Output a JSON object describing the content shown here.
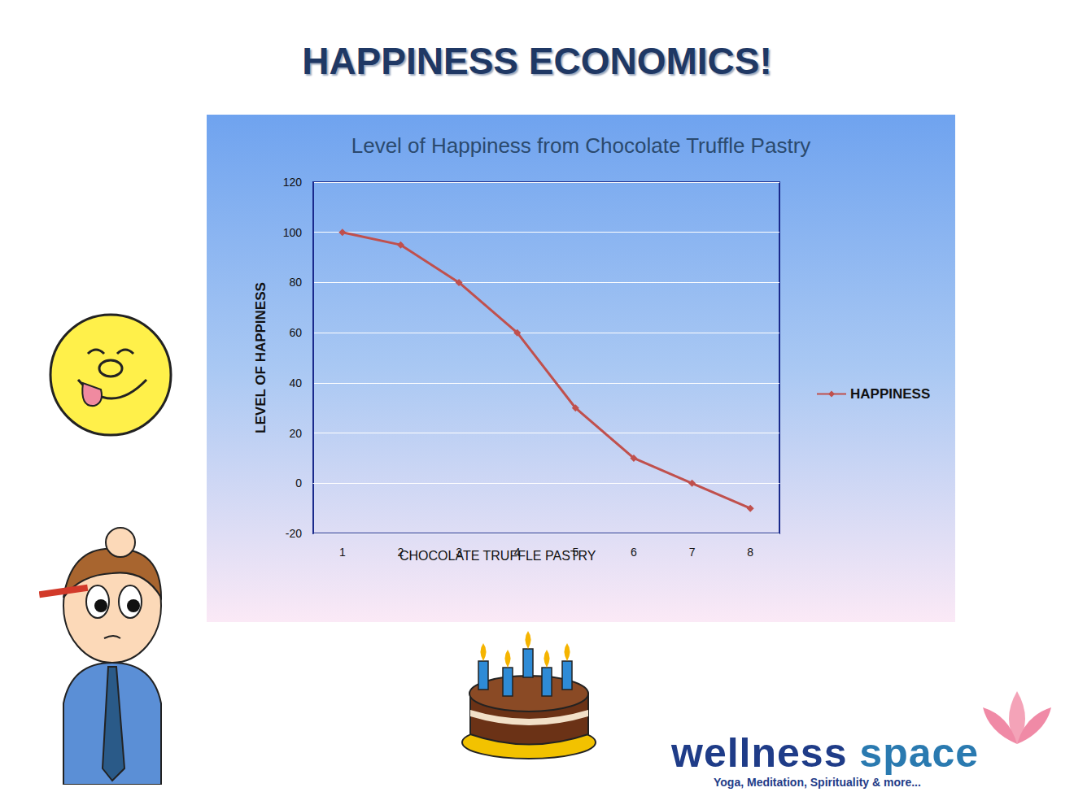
{
  "heading": "HAPPINESS ECONOMICS!",
  "logo": {
    "name": "wellness space",
    "tagline": "Yoga, Meditation, Spirituality & more..."
  },
  "chart_data": {
    "type": "line",
    "title": "Level of Happiness from Chocolate Truffle Pastry",
    "x_label": "CHOCOLATE TRUFFLE PASTRY",
    "y_label": "LEVEL OF HAPPINESS",
    "categories": [
      "1",
      "2",
      "3",
      "4",
      "5",
      "6",
      "7",
      "8"
    ],
    "series": [
      {
        "name": "HAPPINESS",
        "color": "#c0504d",
        "marker": "diamond",
        "values": [
          100,
          95,
          80,
          60,
          30,
          10,
          0,
          -10
        ]
      }
    ],
    "ylim": [
      -20,
      120
    ],
    "yticks": [
      -20,
      0,
      20,
      40,
      60,
      80,
      100,
      120
    ],
    "grid": true,
    "legend": "right"
  }
}
